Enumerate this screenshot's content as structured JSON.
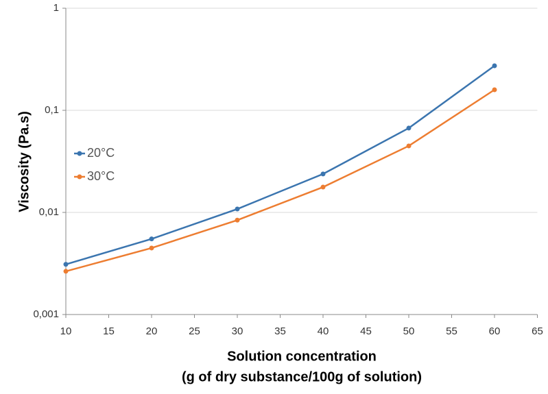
{
  "chart_data": {
    "type": "line",
    "ylabel": "Viscosity (Pa.s)",
    "xlabel": [
      "Solution concentration",
      "(g of dry substance/100g of solution)"
    ],
    "x": [
      10,
      20,
      30,
      40,
      50,
      60
    ],
    "series": [
      {
        "name": "20°C",
        "color": "#3b75af",
        "values": [
          0.0031,
          0.0055,
          0.0108,
          0.0238,
          0.067,
          0.273
        ]
      },
      {
        "name": "30°C",
        "color": "#ed7d31",
        "values": [
          0.00265,
          0.00448,
          0.0084,
          0.0177,
          0.0448,
          0.159
        ]
      }
    ],
    "xlim": [
      10,
      65
    ],
    "xticks": [
      10,
      15,
      20,
      25,
      30,
      35,
      40,
      45,
      50,
      55,
      60,
      65
    ],
    "ylim": [
      0.001,
      1
    ],
    "yticks": [
      {
        "value": 0.001,
        "label": "0,001"
      },
      {
        "value": 0.01,
        "label": "0,01"
      },
      {
        "value": 0.1,
        "label": "0,1"
      },
      1
    ],
    "yscale": "log",
    "grid": true,
    "legend": "left"
  }
}
